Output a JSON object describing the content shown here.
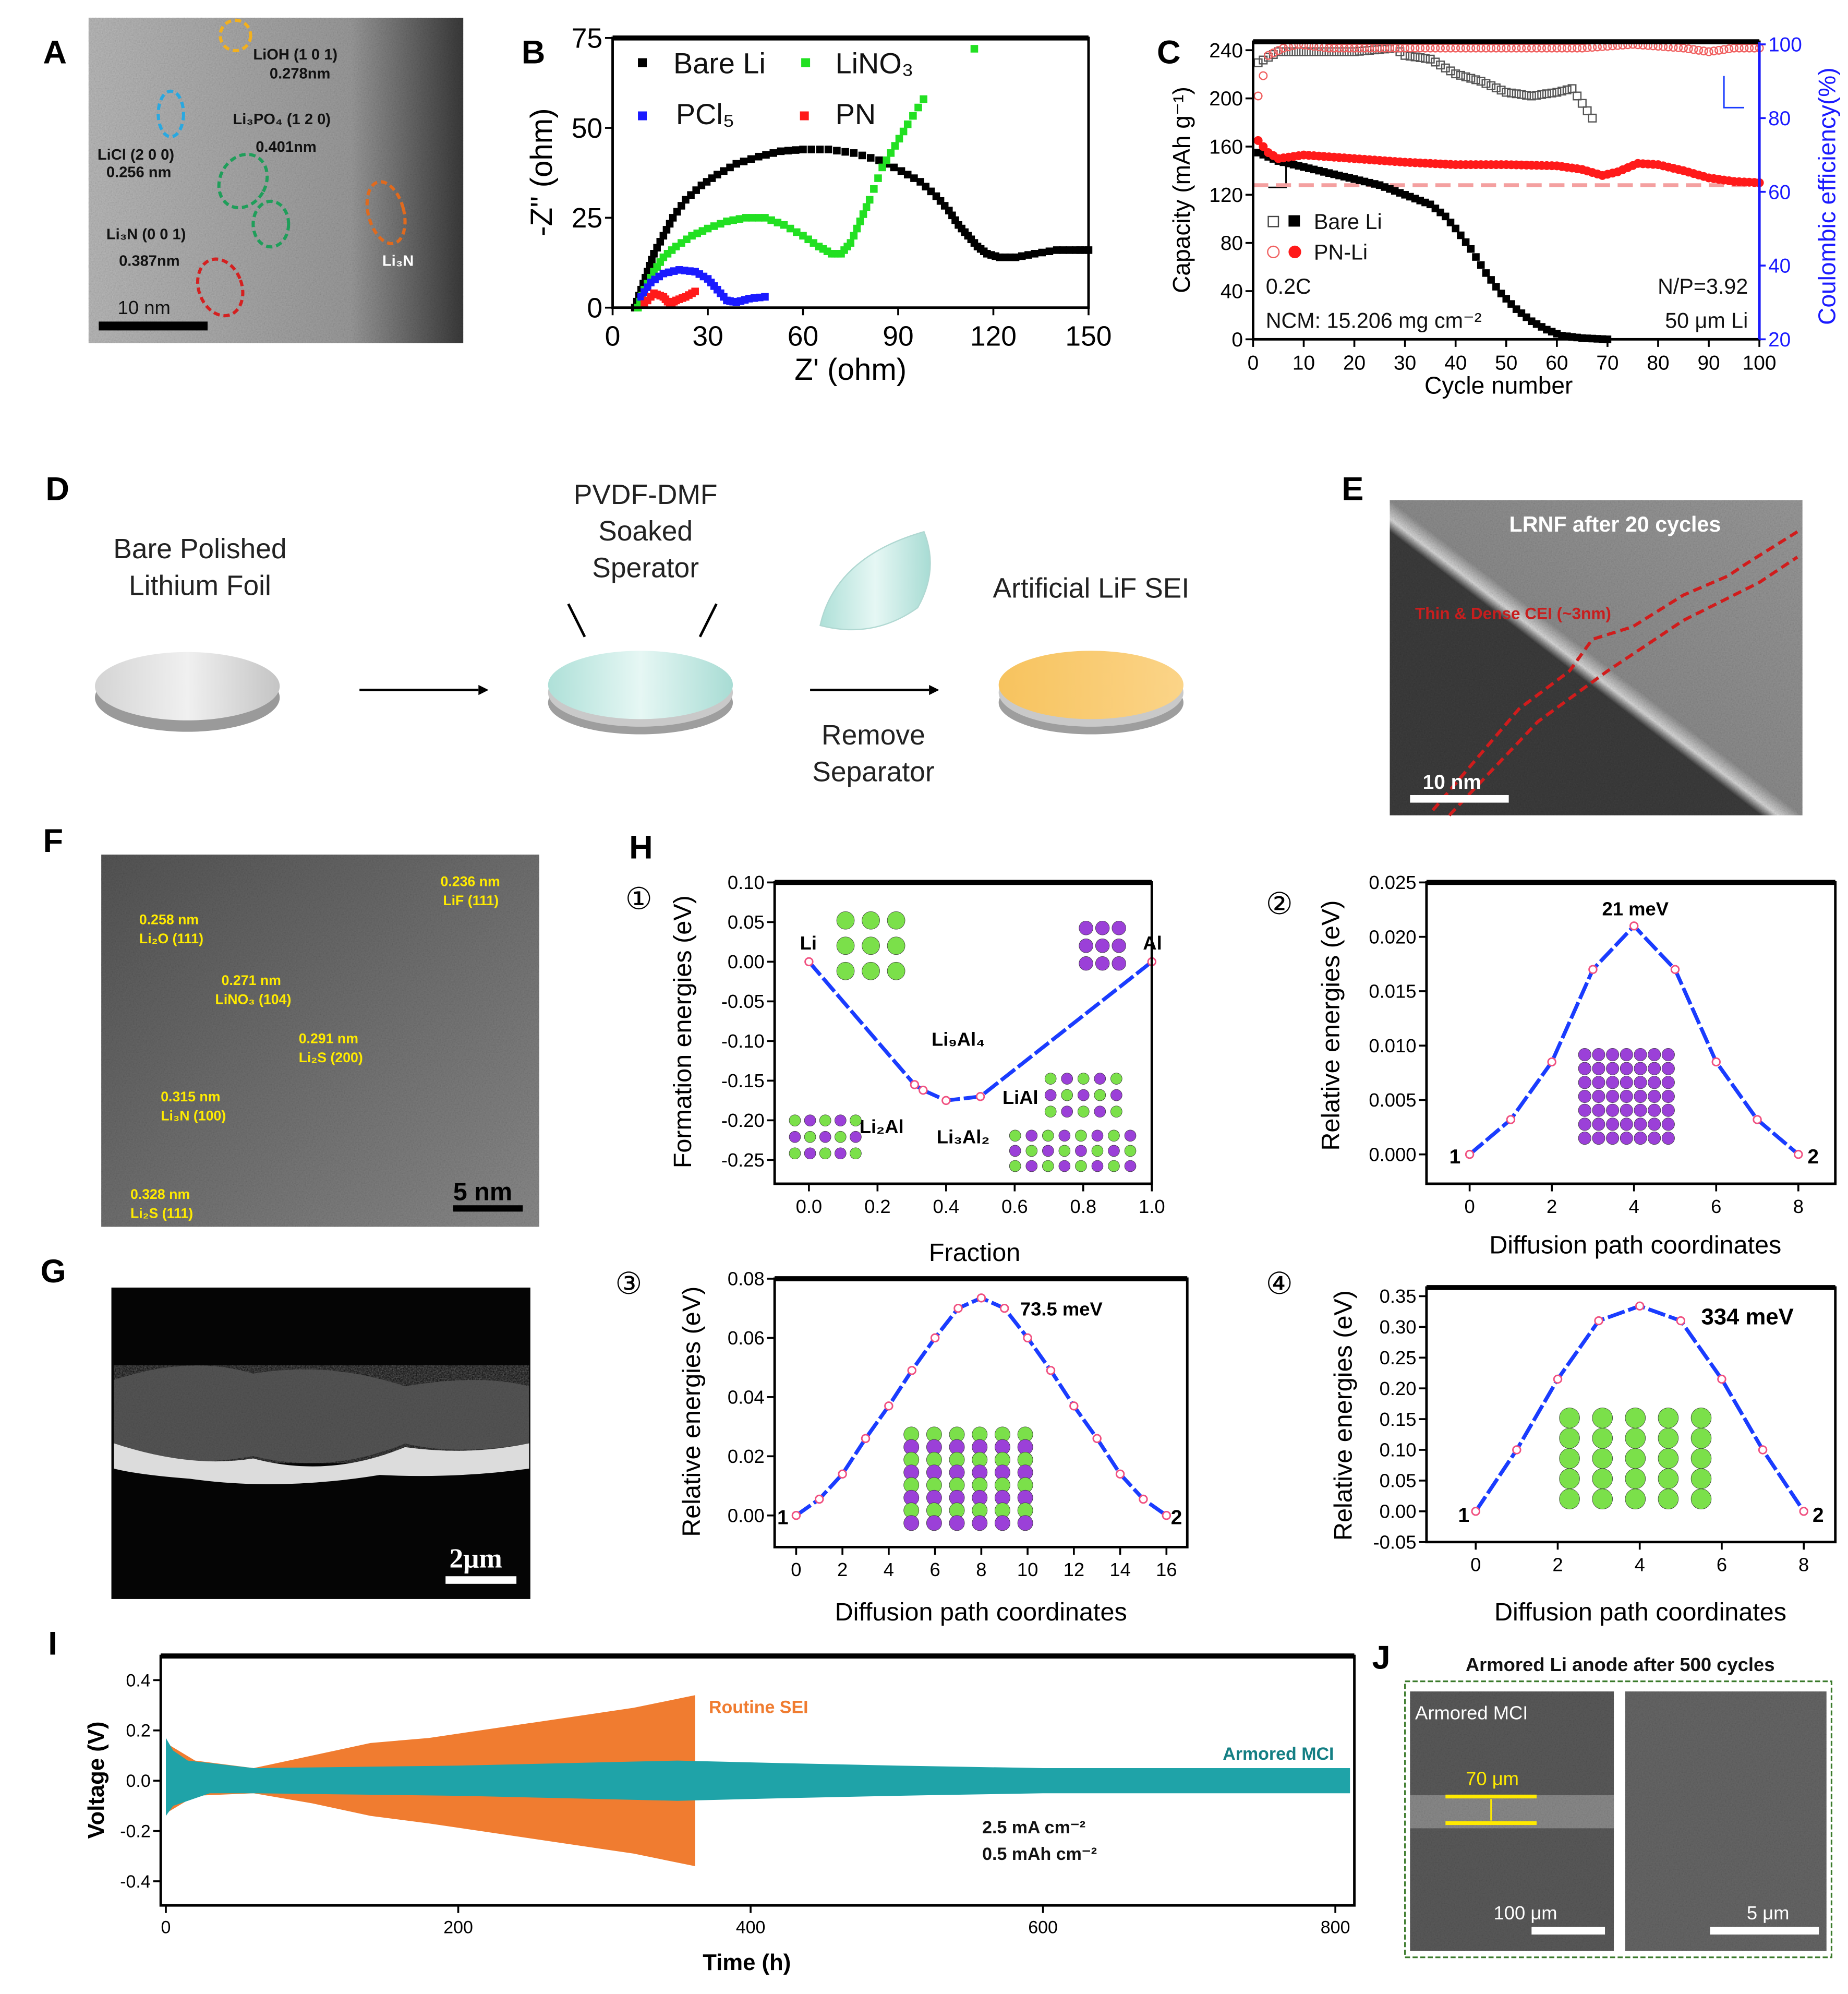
{
  "panel_labels": {
    "A": "A",
    "B": "B",
    "C": "C",
    "D": "D",
    "E": "E",
    "F": "F",
    "G": "G",
    "H": "H",
    "I": "I",
    "J": "J"
  },
  "panel_a": {
    "annotations": [
      "LiOH (1 0 1)",
      "0.278nm",
      "LiCl (2 0 0)",
      "0.256 nm",
      "Li₃PO₄ (1 2 0)",
      "0.401nm",
      "Li₃N (0 0 1)",
      "0.387nm",
      "Li₃N"
    ],
    "scale_bar": "10 nm",
    "ring_colors": [
      "#f2b01e",
      "#29a8e0",
      "#1f9e5a",
      "#1f9e5a",
      "#e06a1e",
      "#d42020"
    ]
  },
  "panel_d": {
    "step1": [
      "Bare Polished",
      "Lithium Foil"
    ],
    "step2": [
      "PVDF-DMF",
      "Soaked",
      "Sperator"
    ],
    "step3": [
      "Remove",
      "Separator"
    ],
    "step4": "Artificial LiF SEI",
    "colors": {
      "foil": "#c8c8c8",
      "separator": "#bfe6e0",
      "sei": "#f7c76a"
    }
  },
  "panel_e": {
    "title": "LRNF after 20 cycles",
    "annotation": "Thin & Dense CEI (~3nm)",
    "scale_bar": "10 nm"
  },
  "panel_f": {
    "annotations": [
      [
        "0.258 nm",
        "Li₂O (111)"
      ],
      [
        "0.236 nm",
        "LiF (111)"
      ],
      [
        "0.271 nm",
        "LiNO₃ (104)"
      ],
      [
        "0.291 nm",
        "Li₂S (200)"
      ],
      [
        "0.315 nm",
        "Li₃N (100)"
      ],
      [
        "0.328 nm",
        "Li₂S (111)"
      ]
    ],
    "scale_bar": "5 nm"
  },
  "panel_g": {
    "scale_bar": "2μm"
  },
  "panel_h": {
    "circled": [
      "①",
      "②",
      "③",
      "④"
    ],
    "phase_labels": [
      "Li",
      "Al",
      "Li₉Al₄",
      "Li₂Al",
      "Li₃Al₂",
      "LiAl"
    ],
    "barriers": [
      "21 meV",
      "73.5 meV",
      "334 meV"
    ],
    "endpoints": [
      "1",
      "2"
    ]
  },
  "panel_j": {
    "title": "Armored Li anode after 500 cycles",
    "inset_label": "Armored MCI",
    "thickness": "70 μm",
    "scale_left": "100 μm",
    "scale_right": "5 μm"
  },
  "chart_data": [
    {
      "id": "B",
      "type": "scatter",
      "xlabel": "Z' (ohm)",
      "ylabel": "-Z'' (ohm)",
      "xlim": [
        0,
        150
      ],
      "ylim": [
        0,
        75
      ],
      "xticks": [
        "0",
        "30",
        "60",
        "90",
        "120",
        "150"
      ],
      "yticks": [
        "0",
        "25",
        "50",
        "75"
      ],
      "legend": "top-left",
      "grid": false,
      "series": [
        {
          "name": "Bare Li",
          "color": "#000000",
          "marker": "square",
          "x": [
            7,
            9,
            11,
            13,
            16,
            19,
            23,
            28,
            33,
            39,
            46,
            53,
            60,
            68,
            76,
            84,
            91,
            97,
            102,
            106,
            109,
            112,
            115,
            118,
            122,
            127,
            133,
            140,
            146,
            150
          ],
          "y": [
            0,
            5,
            10,
            15,
            20,
            25,
            30,
            34,
            37,
            40,
            42,
            43.5,
            44,
            44,
            43,
            41,
            38,
            35,
            31,
            27,
            23,
            20,
            17,
            15,
            14,
            14,
            15,
            16,
            16,
            16
          ]
        },
        {
          "name": "LiNO₃",
          "color": "#22e022",
          "marker": "square",
          "x": [
            8,
            10,
            13,
            16,
            20,
            25,
            30,
            36,
            42,
            48,
            54,
            60,
            65,
            69,
            72,
            75,
            78,
            81,
            85,
            89,
            93,
            98,
            114
          ],
          "y": [
            0,
            5,
            10,
            14,
            17,
            20,
            22,
            24,
            25,
            25,
            23,
            20,
            17,
            15,
            15,
            18,
            24,
            30,
            39,
            45,
            51,
            58,
            72
          ]
        },
        {
          "name": "PCl₅",
          "color": "#1a1aff",
          "marker": "square",
          "x": [
            9,
            12,
            16,
            21,
            26,
            30,
            33,
            36,
            39,
            43,
            48
          ],
          "y": [
            3,
            7,
            9.5,
            10.5,
            10,
            8,
            5,
            2,
            1.5,
            2.5,
            3
          ]
        },
        {
          "name": "PN",
          "color": "#ff1a1a",
          "marker": "square",
          "x": [
            10,
            13,
            16,
            18,
            20,
            23,
            26
          ],
          "y": [
            1,
            4,
            3,
            1,
            2,
            3,
            4.5
          ]
        }
      ]
    },
    {
      "id": "C",
      "type": "scatter",
      "xlabel": "Cycle number",
      "ylabel": "Capacity (mAh g⁻¹)",
      "y2label": "Coulombic efficiency(%)",
      "xlim": [
        0,
        100
      ],
      "ylim": [
        0,
        247
      ],
      "y2lim": [
        20,
        100.7
      ],
      "xticks": [
        "0",
        "10",
        "20",
        "30",
        "40",
        "50",
        "60",
        "70",
        "80",
        "90",
        "100"
      ],
      "yticks": [
        "0",
        "40",
        "80",
        "120",
        "160",
        "200",
        "240"
      ],
      "y2ticks": [
        "20",
        "40",
        "60",
        "80",
        "100"
      ],
      "y2color": "#1a1aff",
      "reference_line": {
        "y": 128,
        "color": "#f4a0a0"
      },
      "legend_entries": [
        "Bare Li",
        "PN-Li"
      ],
      "annotations": [
        "0.2C",
        "NCM: 15.206 mg cm⁻²",
        "N/P=3.92",
        "50 μm Li"
      ],
      "series": [
        {
          "name": "Bare Li capacity",
          "axis": "left",
          "color": "#000000",
          "marker": "square",
          "x": [
            1,
            5,
            10,
            15,
            20,
            25,
            30,
            35,
            38,
            40,
            43,
            46,
            49,
            52,
            55,
            58,
            61,
            65,
            70
          ],
          "y": [
            155,
            148,
            143,
            138,
            133,
            128,
            120,
            112,
            102,
            92,
            75,
            55,
            38,
            25,
            15,
            8,
            3,
            1,
            0
          ]
        },
        {
          "name": "PN-Li capacity",
          "axis": "left",
          "color": "#ff1a1a",
          "marker": "circle",
          "x": [
            1,
            3,
            5,
            10,
            20,
            30,
            40,
            50,
            60,
            65,
            69,
            72,
            76,
            80,
            85,
            90,
            95,
            100
          ],
          "y": [
            165,
            155,
            150,
            153,
            150,
            147,
            145,
            145,
            144,
            141,
            136,
            139,
            146,
            145,
            140,
            134,
            131,
            130
          ]
        },
        {
          "name": "Bare Li CE",
          "axis": "right",
          "color": "#555555",
          "marker": "open-square",
          "x": [
            1,
            5,
            10,
            20,
            28,
            30,
            35,
            40,
            45,
            50,
            55,
            60,
            63,
            65,
            67
          ],
          "y": [
            95,
            98,
            98,
            98,
            99,
            97,
            96,
            92,
            90,
            87,
            86,
            87,
            88,
            84,
            80
          ]
        },
        {
          "name": "PN-Li CE",
          "axis": "right",
          "color": "#f06060",
          "marker": "open-circle",
          "x": [
            1,
            3,
            6,
            9,
            15,
            25,
            35,
            50,
            65,
            75,
            85,
            90,
            95,
            100
          ],
          "y": [
            86,
            97,
            99,
            100,
            99,
            99,
            99,
            99,
            99,
            100,
            99,
            98,
            99,
            99
          ]
        }
      ]
    },
    {
      "id": "H1",
      "type": "line",
      "xlabel": "Fraction",
      "ylabel": "Formation energies (eV)",
      "xlim": [
        -0.1,
        1.0
      ],
      "ylim": [
        -0.28,
        0.1
      ],
      "xticks": [
        "0.0",
        "0.2",
        "0.4",
        "0.6",
        "0.8",
        "1.0"
      ],
      "yticks": [
        "0.10",
        "0.05",
        "0.00",
        "-0.05",
        "-0.10",
        "-0.15",
        "-0.20",
        "-0.25"
      ],
      "series": [
        {
          "color": "#1a3cff",
          "x": [
            0,
            0.308,
            0.333,
            0.4,
            0.5,
            1.0
          ],
          "y": [
            0,
            -0.155,
            -0.162,
            -0.175,
            -0.17,
            0
          ]
        }
      ]
    },
    {
      "id": "H2",
      "type": "line",
      "xlabel": "Diffusion path coordinates",
      "ylabel": "Relative energies (eV)",
      "xlim": [
        -1.05,
        8.9
      ],
      "ylim": [
        -0.0027,
        0.025
      ],
      "xticks": [
        "0",
        "2",
        "4",
        "6",
        "8"
      ],
      "yticks": [
        "0.000",
        "0.005",
        "0.010",
        "0.015",
        "0.020",
        "0.025"
      ],
      "series": [
        {
          "color": "#1a3cff",
          "x": [
            0,
            1,
            2,
            3,
            4,
            5,
            6,
            7,
            8
          ],
          "y": [
            0,
            0.0032,
            0.0085,
            0.017,
            0.021,
            0.017,
            0.0085,
            0.0032,
            0
          ]
        }
      ]
    },
    {
      "id": "H3",
      "type": "line",
      "xlabel": "Diffusion path coordinates",
      "ylabel": "Relative energies (eV)",
      "xlim": [
        -0.93,
        16.9
      ],
      "ylim": [
        -0.0107,
        0.08
      ],
      "xticks": [
        "0",
        "2",
        "4",
        "6",
        "8",
        "10",
        "12",
        "14",
        "16"
      ],
      "yticks": [
        "0.00",
        "0.02",
        "0.04",
        "0.06",
        "0.08"
      ],
      "series": [
        {
          "color": "#1a3cff",
          "x": [
            0,
            1,
            2,
            3,
            4,
            5,
            6,
            7,
            8,
            9,
            10,
            11,
            12,
            13,
            14,
            15,
            16
          ],
          "y": [
            0,
            0.0055,
            0.014,
            0.026,
            0.037,
            0.049,
            0.06,
            0.07,
            0.0735,
            0.07,
            0.06,
            0.049,
            0.037,
            0.026,
            0.014,
            0.0055,
            0
          ]
        }
      ]
    },
    {
      "id": "H4",
      "type": "line",
      "xlabel": "Diffusion path coordinates",
      "ylabel": "Relative energies (eV)",
      "xlim": [
        -1.2,
        8.77
      ],
      "ylim": [
        -0.05,
        0.364
      ],
      "xticks": [
        "0",
        "2",
        "4",
        "6",
        "8"
      ],
      "yticks": [
        "-0.05",
        "0.00",
        "0.05",
        "0.10",
        "0.15",
        "0.20",
        "0.25",
        "0.30",
        "0.35"
      ],
      "series": [
        {
          "color": "#1a3cff",
          "x": [
            0,
            1,
            2,
            3,
            4,
            5,
            6,
            7,
            8
          ],
          "y": [
            0,
            0.1,
            0.215,
            0.31,
            0.334,
            0.31,
            0.215,
            0.1,
            0
          ]
        }
      ]
    },
    {
      "id": "I",
      "type": "area",
      "xlabel": "Time (h)",
      "ylabel": "Voltage (V)",
      "xlim": [
        -3.5,
        813
      ],
      "ylim": [
        -0.496,
        0.496
      ],
      "xticks": [
        "0",
        "200",
        "400",
        "600",
        "800"
      ],
      "yticks": [
        "-0.4",
        "-0.2",
        "0.0",
        "0.2",
        "0.4"
      ],
      "annotations": [
        "2.5 mA cm⁻²",
        "0.5 mAh cm⁻²"
      ],
      "series": [
        {
          "name": "Routine SEI",
          "color": "#f07c30",
          "x": [
            0,
            20,
            60,
            100,
            140,
            180,
            250,
            320,
            362
          ],
          "upper": [
            0.15,
            0.08,
            0.05,
            0.1,
            0.15,
            0.17,
            0.23,
            0.29,
            0.34
          ],
          "lower": [
            -0.13,
            -0.06,
            -0.05,
            -0.09,
            -0.14,
            -0.17,
            -0.23,
            -0.29,
            -0.34
          ]
        },
        {
          "name": "Armored MCI",
          "color": "#1fa3a8",
          "x": [
            0,
            5,
            15,
            30,
            60,
            200,
            350,
            420,
            500,
            600,
            810
          ],
          "upper": [
            0.17,
            0.12,
            0.08,
            0.07,
            0.05,
            0.06,
            0.08,
            0.07,
            0.06,
            0.05,
            0.05
          ],
          "lower": [
            -0.14,
            -0.1,
            -0.08,
            -0.05,
            -0.05,
            -0.06,
            -0.08,
            -0.07,
            -0.06,
            -0.05,
            -0.05
          ]
        }
      ]
    }
  ]
}
